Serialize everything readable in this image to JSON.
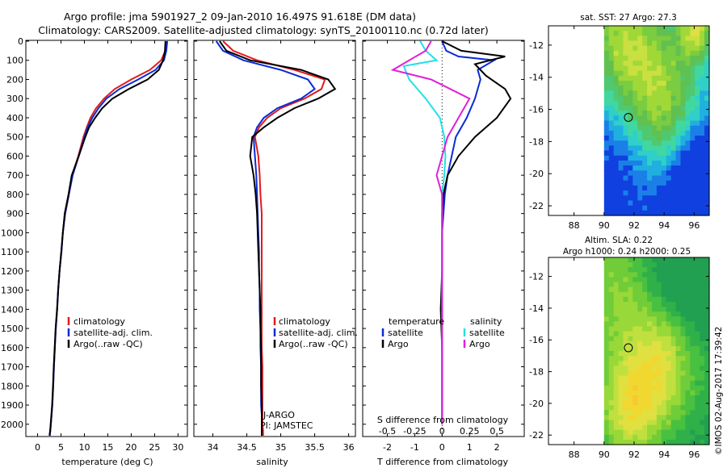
{
  "title": {
    "line1": "Argo profile: jma 5901927_2 09-Jan-2010 16.497S 91.618E (DM data)",
    "line2": "Climatology: CARS2009. Satellite-adjusted climatology: synTS_20100110.nc (0.72d later)"
  },
  "colors": {
    "climatology": "#e31a1c",
    "satellite": "#0b2bd6",
    "argo": "#000000",
    "sal_sat": "#22e0e8",
    "sal_argo": "#e020d8"
  },
  "depth_axis": {
    "ticks": [
      0,
      100,
      200,
      300,
      400,
      500,
      600,
      700,
      800,
      900,
      1000,
      1100,
      1200,
      1300,
      1400,
      1500,
      1600,
      1700,
      1800,
      1900,
      2000
    ],
    "range": [
      0,
      2060
    ]
  },
  "panel_temperature": {
    "xlabel": "temperature (deg C)",
    "xticks": [
      0,
      5,
      10,
      15,
      20,
      25,
      30
    ],
    "xlim": [
      -2.5,
      32
    ],
    "legend": [
      "climatology",
      "satellite-adj. clim.",
      "Argo(..raw -QC)"
    ]
  },
  "panel_salinity": {
    "xlabel": "salinity",
    "xticks": [
      "34",
      "34.5",
      "35",
      "35.5",
      "36"
    ],
    "xlim": [
      33.72,
      36.1
    ],
    "legend": [
      "climatology",
      "satellite-adj. clim.",
      "Argo(..raw -QC)"
    ],
    "note1": "J-ARGO",
    "note2": "PI: JAMSTEC"
  },
  "panel_difference": {
    "xlabel_top": "S difference from climatology",
    "xlabel_bottom": "T difference from climatology",
    "xticks_T": [
      "-2",
      "-1",
      "0",
      "1",
      "2"
    ],
    "xlim_T": [
      -2.9,
      3.0
    ],
    "xticks_S": [
      "-0.5",
      "-0.25",
      "0",
      "0.25",
      "0.5"
    ],
    "legend_temperature_title": "temperature",
    "legend_salinity_title": "salinity",
    "legend_temperature": [
      "satellite",
      "Argo"
    ],
    "legend_salinity": [
      "satellite",
      "Argo"
    ]
  },
  "map_sst": {
    "title": "sat. SST: 27 Argo: 27.3",
    "xticks": [
      "88",
      "90",
      "92",
      "94",
      "96"
    ],
    "yticks": [
      "-12",
      "-14",
      "-16",
      "-18",
      "-20",
      "-22"
    ],
    "xlim": [
      86.3,
      97.0
    ],
    "ylim": [
      -22.6,
      -10.8
    ],
    "marker": {
      "lon": 91.618,
      "lat": -16.497
    }
  },
  "map_sla": {
    "title1": "Altim. SLA: 0.22",
    "title2": "Argo h1000: 0.24 h2000: 0.25",
    "xticks": [
      "88",
      "90",
      "92",
      "94",
      "96"
    ],
    "yticks": [
      "-12",
      "-14",
      "-16",
      "-18",
      "-20",
      "-22"
    ],
    "xlim": [
      86.3,
      97.0
    ],
    "ylim": [
      -22.6,
      -10.8
    ],
    "marker": {
      "lon": 91.618,
      "lat": -16.497
    }
  },
  "credit": "©IMOS 02-Aug-2017 17:39:42",
  "chart_data": [
    {
      "type": "line",
      "title": "",
      "xlabel": "temperature (deg C)",
      "ylabel": "",
      "xlim": [
        -2.5,
        32
      ],
      "ylim": [
        2060,
        0
      ],
      "series": [
        {
          "name": "climatology",
          "x": [
            27.5,
            27.3,
            26.4,
            24.0,
            20.0,
            16.5,
            14.2,
            12.5,
            11.3,
            10.5,
            9.8,
            8.7,
            7.4,
            6.7,
            5.9,
            5.4,
            5.1,
            4.7,
            4.4,
            4.2,
            3.9,
            3.7,
            3.5,
            3.35,
            3.15,
            3.0,
            2.85,
            2.75,
            2.6
          ],
          "y": [
            0,
            50,
            100,
            150,
            200,
            250,
            300,
            350,
            400,
            450,
            500,
            600,
            700,
            800,
            900,
            1000,
            1100,
            1200,
            1300,
            1400,
            1500,
            1600,
            1700,
            1800,
            1900,
            1950,
            2000,
            2030,
            2060
          ]
        },
        {
          "name": "satellite-adj. clim.",
          "x": [
            27.7,
            27.5,
            27.0,
            25.2,
            21.5,
            17.5,
            14.7,
            13.0,
            11.7,
            10.7,
            10.0,
            8.8,
            7.5,
            6.7,
            5.9,
            5.4,
            5.1,
            4.7,
            4.4,
            4.2,
            3.9,
            3.7,
            3.5,
            3.35,
            3.15,
            3.0,
            2.85,
            2.75,
            2.6
          ],
          "y": [
            0,
            50,
            100,
            150,
            200,
            250,
            300,
            350,
            400,
            450,
            500,
            600,
            700,
            800,
            900,
            1000,
            1100,
            1200,
            1300,
            1400,
            1500,
            1600,
            1700,
            1800,
            1900,
            1950,
            2000,
            2030,
            2060
          ]
        },
        {
          "name": "Argo(..raw -QC)",
          "x": [
            27.3,
            27.2,
            26.8,
            25.9,
            23.5,
            19.5,
            16.0,
            13.8,
            12.3,
            11.0,
            10.2,
            8.8,
            7.3,
            6.6,
            5.8,
            5.4,
            5.05,
            4.7,
            4.4,
            4.15,
            3.85,
            3.65,
            3.45,
            3.3,
            3.1,
            2.95,
            2.8,
            2.7,
            2.55
          ],
          "y": [
            0,
            50,
            100,
            150,
            200,
            250,
            300,
            350,
            400,
            450,
            500,
            600,
            700,
            800,
            900,
            1000,
            1100,
            1200,
            1300,
            1400,
            1500,
            1600,
            1700,
            1800,
            1900,
            1950,
            2000,
            2030,
            2060
          ]
        }
      ]
    },
    {
      "type": "line",
      "title": "",
      "xlabel": "salinity",
      "ylabel": "",
      "xlim": [
        33.72,
        36.1
      ],
      "ylim": [
        2060,
        0
      ],
      "series": [
        {
          "name": "climatology",
          "x": [
            34.15,
            34.3,
            34.65,
            35.2,
            35.65,
            35.6,
            35.35,
            35.0,
            34.8,
            34.68,
            34.62,
            34.67,
            34.69,
            34.7,
            34.72,
            34.72,
            34.72,
            34.72,
            34.72,
            34.72,
            34.72,
            34.72,
            34.73,
            34.73,
            34.73,
            34.73,
            34.73,
            34.74,
            34.74
          ],
          "y": [
            0,
            50,
            100,
            150,
            200,
            250,
            300,
            350,
            400,
            450,
            500,
            600,
            700,
            800,
            900,
            1000,
            1100,
            1200,
            1300,
            1400,
            1500,
            1600,
            1700,
            1800,
            1900,
            1950,
            2000,
            2030,
            2060
          ]
        },
        {
          "name": "satellite-adj. clim.",
          "x": [
            34.05,
            34.15,
            34.45,
            35.0,
            35.4,
            35.5,
            35.3,
            34.95,
            34.75,
            34.65,
            34.6,
            34.62,
            34.64,
            34.65,
            34.66,
            34.67,
            34.68,
            34.68,
            34.69,
            34.69,
            34.7,
            34.7,
            34.71,
            34.71,
            34.71,
            34.72,
            34.72,
            34.72,
            34.72
          ],
          "y": [
            0,
            50,
            100,
            150,
            200,
            250,
            300,
            350,
            400,
            450,
            500,
            600,
            700,
            800,
            900,
            1000,
            1100,
            1200,
            1300,
            1400,
            1500,
            1600,
            1700,
            1800,
            1900,
            1950,
            2000,
            2030,
            2060
          ]
        },
        {
          "name": "Argo(..raw -QC)",
          "x": [
            34.1,
            34.2,
            34.55,
            35.3,
            35.7,
            35.8,
            35.55,
            35.2,
            34.95,
            34.75,
            34.58,
            34.55,
            34.6,
            34.63,
            34.65,
            34.66,
            34.67,
            34.68,
            34.69,
            34.7,
            34.7,
            34.71,
            34.71,
            34.71,
            34.72,
            34.72,
            34.72,
            34.72,
            34.72
          ],
          "y": [
            0,
            50,
            100,
            150,
            200,
            250,
            300,
            350,
            400,
            450,
            500,
            600,
            700,
            800,
            900,
            1000,
            1100,
            1200,
            1300,
            1400,
            1500,
            1600,
            1700,
            1800,
            1900,
            1950,
            2000,
            2030,
            2060
          ]
        }
      ]
    },
    {
      "type": "line",
      "title": "",
      "xlabel": "T difference from climatology",
      "ylabel": "",
      "xlim": [
        -2.9,
        3.0
      ],
      "ylim": [
        2060,
        0
      ],
      "series": [
        {
          "name": "temperature satellite",
          "x": [
            0.0,
            0.15,
            0.6,
            1.9,
            1.3,
            1.4,
            1.2,
            0.9,
            0.5,
            0.35,
            0.2,
            0.1,
            0.05,
            0.0,
            0.0,
            0.0,
            0.0,
            0.0
          ],
          "y": [
            0,
            50,
            80,
            100,
            150,
            200,
            300,
            400,
            500,
            600,
            700,
            800,
            900,
            1000,
            1200,
            1400,
            1600,
            2000
          ]
        },
        {
          "name": "temperature Argo",
          "x": [
            0.0,
            0.7,
            2.3,
            1.2,
            1.6,
            2.3,
            2.5,
            2.0,
            1.2,
            0.6,
            0.2,
            0.05,
            0.0,
            0.0,
            0.0,
            -0.05,
            0.0,
            0.0
          ],
          "y": [
            0,
            50,
            80,
            120,
            180,
            250,
            300,
            400,
            500,
            600,
            700,
            800,
            900,
            1000,
            1200,
            1400,
            1600,
            2000
          ]
        },
        {
          "name": "salinity satellite",
          "x": [
            -0.2,
            -0.15,
            -0.05,
            -0.35,
            -0.3,
            -0.15,
            -0.02,
            0.02,
            0.03,
            0.02,
            0.0,
            0.0,
            0.0,
            0.0,
            0.0,
            0.0,
            0.0
          ],
          "y": [
            0,
            50,
            100,
            130,
            200,
            300,
            400,
            500,
            600,
            700,
            800,
            900,
            1000,
            1200,
            1400,
            1600,
            2000
          ]
        },
        {
          "name": "salinity Argo",
          "x": [
            -0.1,
            -0.15,
            -0.3,
            -0.45,
            -0.1,
            0.25,
            0.15,
            0.05,
            0.0,
            -0.05,
            0.0,
            0.0,
            0.0,
            0.0
          ],
          "y": [
            0,
            50,
            100,
            150,
            200,
            300,
            400,
            500,
            600,
            700,
            800,
            1000,
            1400,
            2000
          ]
        }
      ]
    }
  ]
}
